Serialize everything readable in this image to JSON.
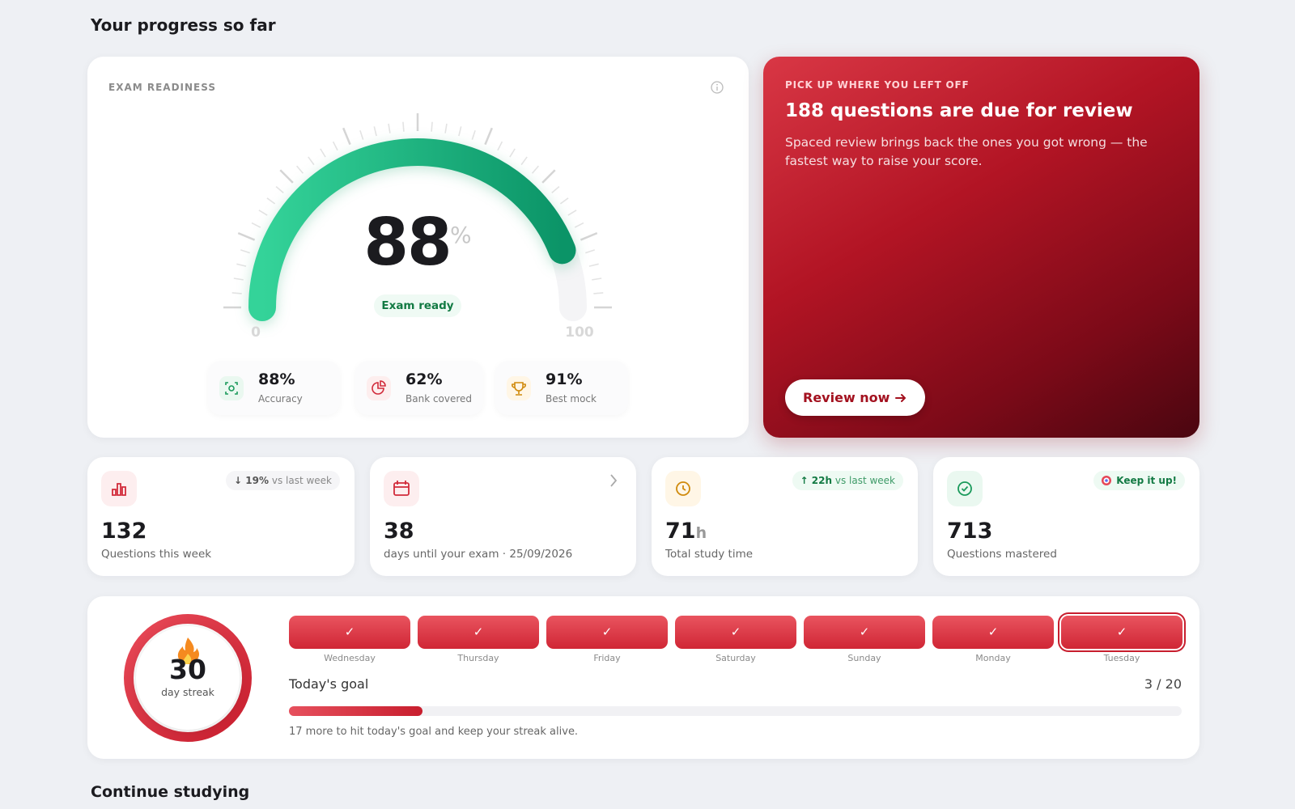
{
  "header": {
    "title": "Your progress so far"
  },
  "readiness": {
    "label": "EXAM READINESS",
    "gauge": {
      "value": 88,
      "unit": "%",
      "min": 0,
      "max": 100,
      "status": "Exam ready"
    },
    "stats": [
      {
        "value": "88%",
        "label": "Accuracy"
      },
      {
        "value": "62%",
        "label": "Bank covered"
      },
      {
        "value": "91%",
        "label": "Best mock"
      }
    ]
  },
  "review": {
    "eyebrow": "PICK UP WHERE YOU LEFT OFF",
    "title": "188 questions are due for review",
    "body": "Spaced review brings back the ones you got wrong — the fastest way to raise your score.",
    "button": "Review now"
  },
  "cards": [
    {
      "badge_change": "↓ 19%",
      "badge_text": "vs last week",
      "value": "132",
      "label": "Questions this week"
    },
    {
      "value": "38",
      "label": "days until your exam · 25/09/2026"
    },
    {
      "badge_change": "↑ 22h",
      "badge_text": "vs last week",
      "value": "71",
      "unit": "h",
      "label": "Total study time"
    },
    {
      "badge_text": "Keep it up!",
      "value": "713",
      "label": "Questions mastered"
    }
  ],
  "streak": {
    "count": "30",
    "label": "day streak",
    "days": [
      {
        "name": "Wednesday",
        "mark": "✓"
      },
      {
        "name": "Thursday",
        "mark": "✓"
      },
      {
        "name": "Friday",
        "mark": "✓"
      },
      {
        "name": "Saturday",
        "mark": "✓"
      },
      {
        "name": "Sunday",
        "mark": "✓"
      },
      {
        "name": "Monday",
        "mark": "✓"
      },
      {
        "name": "Tuesday",
        "mark": "✓"
      }
    ],
    "goal": {
      "label": "Today's goal",
      "done": 3,
      "separator": " / ",
      "target": 20,
      "note": "17 more to hit today's goal and keep your streak alive."
    }
  },
  "section": {
    "title": "Continue studying"
  }
}
